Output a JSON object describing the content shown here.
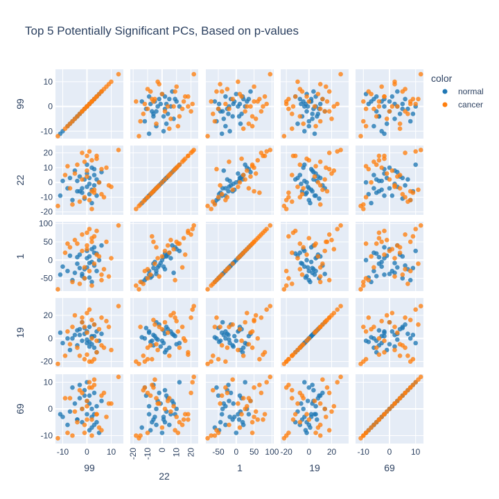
{
  "chart_data": {
    "type": "scatter",
    "subtype": "scatter-matrix",
    "title": "Top 5 Potentially Significant PCs, Based on p-values",
    "dimensions": [
      "99",
      "22",
      "1",
      "19",
      "69"
    ],
    "axis_ranges": {
      "99": [
        -13,
        15
      ],
      "22": [
        -22,
        25
      ],
      "1": [
        -85,
        105
      ],
      "19": [
        -25,
        35
      ],
      "69": [
        -13,
        13
      ]
    },
    "ticks": {
      "99": [
        -10,
        0,
        10
      ],
      "22": [
        -20,
        -10,
        0,
        10,
        20
      ],
      "1": [
        -50,
        0,
        50,
        100
      ],
      "19": [
        -20,
        0,
        20
      ],
      "69": [
        -10,
        0,
        10
      ]
    },
    "grid": true,
    "legend": {
      "title": "color",
      "position": "top-right"
    },
    "series": [
      {
        "name": "normal",
        "color": "#1f77b4",
        "points": [
          [
            -11,
            -9,
            -40,
            5,
            -2
          ],
          [
            -10,
            1,
            -18,
            -4,
            -3
          ],
          [
            -8,
            -4,
            -30,
            0,
            -6
          ],
          [
            -5,
            8,
            -35,
            3,
            2
          ],
          [
            -4,
            -6,
            -10,
            -6,
            -4
          ],
          [
            -3,
            4,
            15,
            8,
            4
          ],
          [
            -2,
            -7,
            -44,
            -2,
            -5
          ],
          [
            -1,
            2,
            -25,
            4,
            7
          ],
          [
            0,
            -3,
            -20,
            -1,
            3
          ],
          [
            0,
            6,
            5,
            6,
            -2
          ],
          [
            1,
            -8,
            -48,
            -3,
            -8
          ],
          [
            1,
            3,
            10,
            10,
            5
          ],
          [
            2,
            -5,
            -5,
            2,
            -3
          ],
          [
            2,
            10,
            30,
            -5,
            0
          ],
          [
            3,
            -2,
            -15,
            12,
            6
          ],
          [
            3,
            5,
            20,
            -8,
            -6
          ],
          [
            4,
            -9,
            -30,
            6,
            1
          ],
          [
            5,
            0,
            0,
            -2,
            -9
          ],
          [
            6,
            7,
            40,
            4,
            3
          ],
          [
            -6,
            -12,
            -55,
            0,
            8
          ],
          [
            -7,
            3,
            12,
            -10,
            -1
          ],
          [
            -2,
            -4,
            -38,
            14,
            0
          ],
          [
            0,
            12,
            25,
            -4,
            10
          ],
          [
            2,
            -14,
            -60,
            1,
            -7
          ],
          [
            -4,
            1,
            8,
            7,
            -4
          ],
          [
            1,
            -1,
            -8,
            -7,
            2
          ],
          [
            3,
            9,
            35,
            2,
            -2
          ],
          [
            -1,
            -11,
            -50,
            9,
            5
          ],
          [
            4,
            2,
            18,
            -12,
            -5
          ],
          [
            -3,
            -6,
            -22,
            3,
            9
          ]
        ]
      },
      {
        "name": "cancer",
        "color": "#ff7f0e",
        "points": [
          [
            -9,
            5,
            20,
            -15,
            4
          ],
          [
            -6,
            -15,
            -60,
            10,
            -10
          ],
          [
            -4,
            12,
            45,
            -8,
            -5
          ],
          [
            -2,
            20,
            70,
            18,
            6
          ],
          [
            -1,
            -10,
            -50,
            -18,
            -9
          ],
          [
            0,
            8,
            30,
            22,
            1
          ],
          [
            1,
            -12,
            -30,
            -20,
            8
          ],
          [
            2,
            15,
            60,
            0,
            -4
          ],
          [
            3,
            -5,
            -10,
            12,
            11
          ],
          [
            4,
            18,
            80,
            -12,
            -2
          ],
          [
            5,
            0,
            10,
            8,
            -7
          ],
          [
            6,
            -8,
            -40,
            -6,
            5
          ],
          [
            8,
            10,
            50,
            15,
            -3
          ],
          [
            10,
            -3,
            5,
            -10,
            2
          ],
          [
            13,
            22,
            95,
            28,
            12
          ],
          [
            -12,
            -16,
            -80,
            -22,
            -11
          ],
          [
            -5,
            6,
            55,
            20,
            -1
          ],
          [
            -3,
            -13,
            -65,
            -15,
            7
          ],
          [
            1,
            21,
            85,
            25,
            10
          ],
          [
            2,
            -18,
            -70,
            -20,
            -10
          ],
          [
            0,
            4,
            40,
            5,
            3
          ],
          [
            -1,
            14,
            -20,
            10,
            -6
          ],
          [
            3,
            -7,
            65,
            -18,
            9
          ],
          [
            6,
            9,
            -55,
            18,
            -8
          ],
          [
            -7,
            -4,
            35,
            -5,
            4
          ],
          [
            4,
            16,
            15,
            -2,
            -2
          ],
          [
            -2,
            2,
            25,
            14,
            0
          ],
          [
            7,
            -10,
            -25,
            -8,
            6
          ],
          [
            -8,
            11,
            45,
            6,
            -9
          ],
          [
            9,
            -2,
            -45,
            10,
            2
          ],
          [
            0,
            18,
            75,
            -14,
            -4
          ],
          [
            2,
            -6,
            50,
            16,
            8
          ]
        ]
      }
    ]
  }
}
